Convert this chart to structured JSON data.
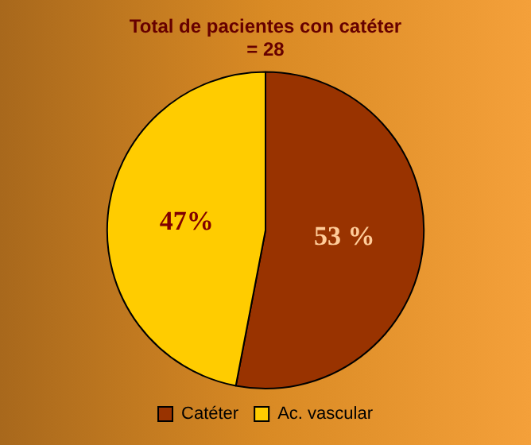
{
  "chart_data": {
    "type": "pie",
    "title": "Total de pacientes con catéter\n= 28",
    "categories": [
      "Catéter",
      "Ac. vascular"
    ],
    "values": [
      53,
      47
    ],
    "colors": [
      "#993300",
      "#ffcc00"
    ],
    "value_labels": [
      "53 %",
      "47%"
    ],
    "legend": "bottom"
  }
}
